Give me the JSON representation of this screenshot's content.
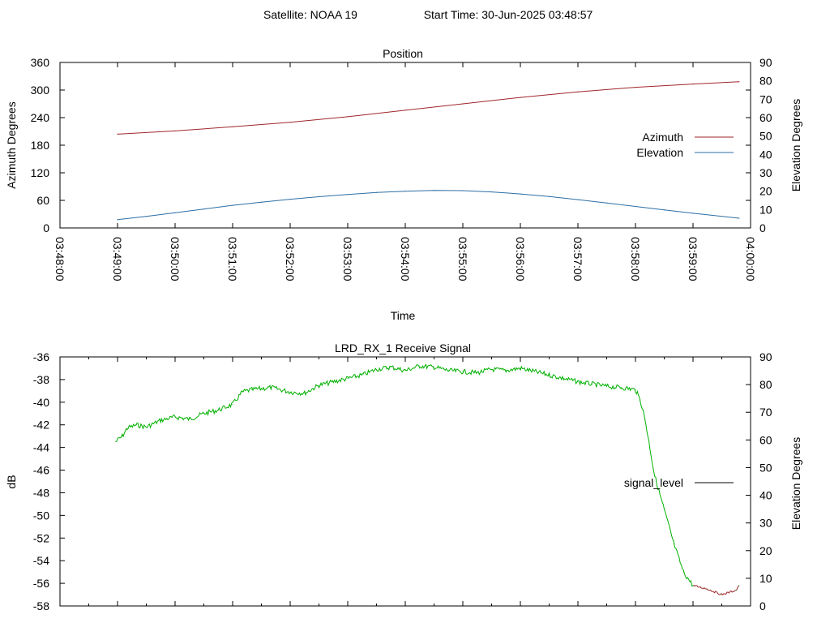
{
  "header": {
    "satellite": "Satellite: NOAA 19",
    "start_time": "Start Time: 30-Jun-2025 03:48:57"
  },
  "colors": {
    "azimuth": "#a0262a",
    "elevation": "#2c6ea5",
    "signal": "#00b000",
    "signal_tail": "#a0262a",
    "axis": "#000000"
  },
  "chart_data": [
    {
      "type": "line",
      "title": "Position",
      "xlabel": "Time",
      "ylabel": "Azimuth Degrees",
      "y2label": "Elevation Degrees",
      "xlim": [
        "03:48:00",
        "04:00:00"
      ],
      "x_tick_labels": [
        "03:48:00",
        "03:49:00",
        "03:50:00",
        "03:51:00",
        "03:52:00",
        "03:53:00",
        "03:54:00",
        "03:55:00",
        "03:56:00",
        "03:57:00",
        "03:58:00",
        "03:59:00",
        "04:00:00"
      ],
      "ylim": [
        0,
        360
      ],
      "y_ticks": [
        0,
        60,
        120,
        180,
        240,
        300,
        360
      ],
      "y2lim": [
        0,
        90
      ],
      "y2_ticks": [
        0,
        10,
        20,
        30,
        40,
        50,
        60,
        70,
        80,
        90
      ],
      "legend_position": "right",
      "series": [
        {
          "name": "Azimuth",
          "axis": "y",
          "x": [
            "03:49:00",
            "03:50:00",
            "03:51:00",
            "03:52:00",
            "03:53:00",
            "03:54:00",
            "03:55:00",
            "03:56:00",
            "03:57:00",
            "03:58:00",
            "03:59:00",
            "03:59:48"
          ],
          "values": [
            204,
            211,
            220,
            230,
            242,
            256,
            270,
            284,
            296,
            306,
            313,
            318
          ]
        },
        {
          "name": "Elevation",
          "axis": "y2",
          "x": [
            "03:49:00",
            "03:49:30",
            "03:50:00",
            "03:50:30",
            "03:51:00",
            "03:51:30",
            "03:52:00",
            "03:52:30",
            "03:53:00",
            "03:53:30",
            "03:54:00",
            "03:54:30",
            "03:55:00",
            "03:55:30",
            "03:56:00",
            "03:56:30",
            "03:57:00",
            "03:57:30",
            "03:58:00",
            "03:58:30",
            "03:59:00",
            "03:59:48"
          ],
          "values": [
            4.5,
            6.3,
            8.3,
            10.3,
            12.3,
            14.0,
            15.6,
            17.0,
            18.2,
            19.3,
            20.0,
            20.4,
            20.3,
            19.6,
            18.5,
            17.1,
            15.4,
            13.6,
            11.7,
            9.8,
            8.0,
            5.3
          ]
        }
      ]
    },
    {
      "type": "line",
      "title": "LRD_RX_1 Receive Signal",
      "xlabel": "",
      "ylabel": "dB",
      "y2label": "Elevation Degrees",
      "xlim": [
        "03:48:00",
        "04:00:00"
      ],
      "ylim": [
        -58,
        -36
      ],
      "y_ticks": [
        -58,
        -56,
        -54,
        -52,
        -50,
        -48,
        -46,
        -44,
        -42,
        -40,
        -38,
        -36
      ],
      "y2lim": [
        0,
        90
      ],
      "y2_ticks": [
        0,
        10,
        20,
        30,
        40,
        50,
        60,
        70,
        80,
        90
      ],
      "legend_position": "right",
      "series": [
        {
          "name": "signal_level",
          "axis": "y",
          "x": [
            "03:48:58",
            "03:49:05",
            "03:49:10",
            "03:49:20",
            "03:49:30",
            "03:49:45",
            "03:50:00",
            "03:50:15",
            "03:50:30",
            "03:50:45",
            "03:51:00",
            "03:51:10",
            "03:51:20",
            "03:51:40",
            "03:52:00",
            "03:52:15",
            "03:52:30",
            "03:52:45",
            "03:53:00",
            "03:53:15",
            "03:53:30",
            "03:53:45",
            "03:54:00",
            "03:54:15",
            "03:54:30",
            "03:54:45",
            "03:55:00",
            "03:55:15",
            "03:55:30",
            "03:55:45",
            "03:56:00",
            "03:56:15",
            "03:56:30",
            "03:56:45",
            "03:57:00",
            "03:57:15",
            "03:57:30",
            "03:57:45",
            "03:58:00",
            "03:58:05",
            "03:58:10",
            "03:58:15",
            "03:58:20",
            "03:58:30",
            "03:58:40",
            "03:58:50",
            "03:59:00",
            "03:59:15",
            "03:59:30",
            "03:59:45",
            "03:59:48"
          ],
          "values": [
            -43.5,
            -43.0,
            -42.3,
            -42.0,
            -42.2,
            -41.6,
            -41.3,
            -41.5,
            -41.0,
            -40.7,
            -40.2,
            -39.1,
            -38.9,
            -38.7,
            -39.1,
            -39.2,
            -38.5,
            -38.2,
            -37.9,
            -37.6,
            -37.1,
            -36.9,
            -37.2,
            -36.8,
            -36.9,
            -37.2,
            -37.3,
            -37.4,
            -37.1,
            -37.2,
            -37.0,
            -37.3,
            -37.6,
            -37.9,
            -38.2,
            -38.4,
            -38.6,
            -38.7,
            -38.9,
            -39.8,
            -41.5,
            -44.0,
            -46.5,
            -49.5,
            -52.5,
            -55.0,
            -56.2,
            -56.5,
            -57.0,
            -56.6,
            -56.2
          ]
        }
      ]
    }
  ]
}
